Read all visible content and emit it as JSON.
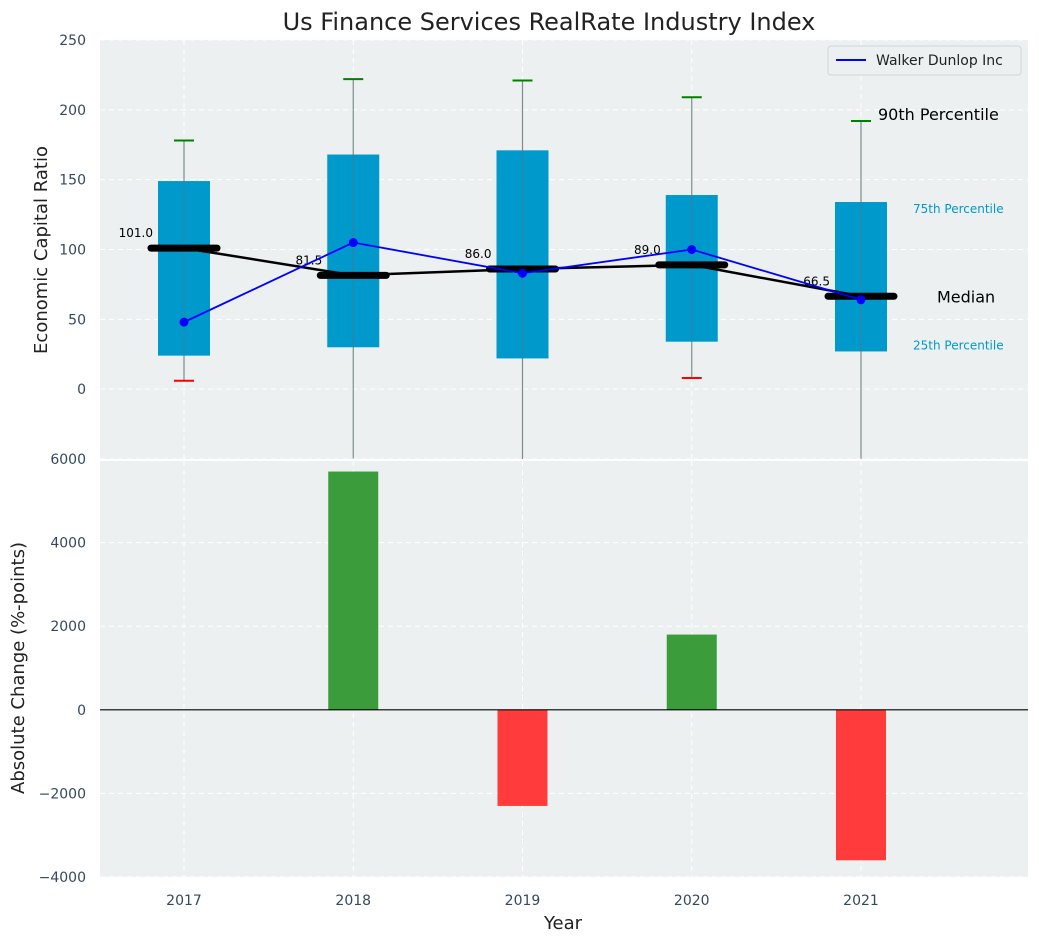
{
  "chart_data": [
    {
      "type": "box",
      "title": "Us Finance Services RealRate Industry Index",
      "ylabel": "Economic Capital Ratio",
      "ylim": [
        -50,
        250
      ],
      "yticks": [
        0,
        50,
        100,
        150,
        200,
        250
      ],
      "categories": [
        "2017",
        "2018",
        "2019",
        "2020",
        "2021"
      ],
      "grid": true,
      "legend_position": "top-right",
      "boxes": [
        {
          "year": "2017",
          "q1": 24,
          "q3": 149,
          "median": 101.0,
          "median_label": "101.0",
          "p90": 178,
          "p10": 6
        },
        {
          "year": "2018",
          "q1": 30,
          "q3": 168,
          "median": 81.5,
          "median_label": "81.5",
          "p90": 222,
          "p10": null
        },
        {
          "year": "2019",
          "q1": 22,
          "q3": 171,
          "median": 86.0,
          "median_label": "86.0",
          "p90": 221,
          "p10": null
        },
        {
          "year": "2020",
          "q1": 34,
          "q3": 139,
          "median": 89.0,
          "median_label": "89.0",
          "p90": 209,
          "p10": 8
        },
        {
          "year": "2021",
          "q1": 27,
          "q3": 134,
          "median": 66.5,
          "median_label": "66.5",
          "p90": 192,
          "p10": null
        }
      ],
      "company_series": {
        "name": "Walker Dunlop Inc",
        "color": "#0000ff",
        "values": [
          48,
          105,
          83,
          100,
          64
        ]
      },
      "annotations": {
        "p90": "90th Percentile",
        "p75": "75th Percentile",
        "median": "Median",
        "p25": "25th Percentile"
      },
      "colors": {
        "box": "#0099cc",
        "median_line": "#000000",
        "whisker_top": "#008000",
        "whisker_bottom": "#ff0000",
        "background": "#ecf0f1"
      }
    },
    {
      "type": "bar",
      "ylabel": "Absolute Change (%-points)",
      "xlabel": "Year",
      "ylim": [
        -4000,
        6000
      ],
      "yticks": [
        -4000,
        -2000,
        0,
        2000,
        4000,
        6000
      ],
      "categories": [
        "2017",
        "2018",
        "2019",
        "2020",
        "2021"
      ],
      "values": [
        0,
        5700,
        -2300,
        1800,
        -3600
      ],
      "grid": true,
      "colors": {
        "positive": "#3a9c3a",
        "negative": "#ff3b3b"
      }
    }
  ]
}
